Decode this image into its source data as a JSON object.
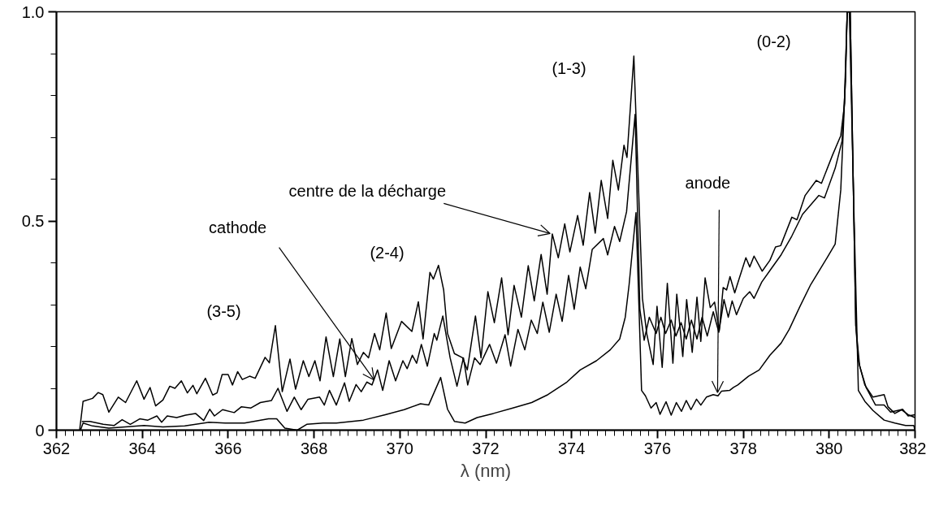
{
  "chart_data": {
    "type": "line",
    "xlabel": "λ (nm)",
    "xlim": [
      362,
      382
    ],
    "xticks": [
      362,
      364,
      366,
      368,
      370,
      372,
      374,
      376,
      378,
      380,
      382
    ],
    "ylim": [
      0,
      1
    ],
    "yticks": [
      0,
      0.5,
      {
        "value": 1,
        "label": "1.0"
      }
    ],
    "grid": false,
    "marker": "none",
    "line_style": "solid",
    "series": [
      {
        "color": "#000000",
        "x": [
          362.54,
          362.62,
          362.84,
          362.97,
          363.08,
          363.22,
          363.44,
          363.61,
          363.87,
          364.04,
          364.18,
          364.31,
          364.48,
          364.64,
          364.76,
          364.91,
          365.05,
          365.18,
          365.27,
          365.47,
          365.64,
          365.74,
          365.86,
          366.0,
          366.1,
          366.22,
          366.33,
          366.5,
          366.63,
          366.86,
          366.96,
          367.1,
          367.26,
          367.44,
          367.57,
          367.75,
          367.88,
          368.02,
          368.14,
          368.28,
          368.45,
          368.6,
          368.73,
          368.88,
          369.01,
          369.15,
          369.27,
          369.41,
          369.53,
          369.68,
          369.8,
          370.04,
          370.28,
          370.43,
          370.54,
          370.7,
          370.78,
          370.9,
          371.02,
          371.11,
          371.27,
          371.46,
          371.57,
          371.76,
          371.89,
          372.05,
          372.2,
          372.37,
          372.52,
          372.66,
          372.83,
          372.99,
          373.13,
          373.29,
          373.43,
          373.55,
          373.69,
          373.84,
          373.96,
          374.14,
          374.27,
          374.42,
          374.55,
          374.69,
          374.84,
          374.96,
          375.09,
          375.22,
          375.29,
          375.45,
          375.65,
          375.75,
          375.9,
          375.99,
          376.11,
          376.23,
          376.36,
          376.45,
          376.59,
          376.68,
          376.81,
          376.92,
          377.01,
          377.11,
          377.23,
          377.33,
          377.44,
          377.53,
          377.61,
          377.69,
          377.8,
          377.9,
          378.06,
          378.15,
          378.25,
          378.44,
          378.62,
          378.75,
          378.87,
          379.13,
          379.25,
          379.44,
          379.7,
          379.82,
          380.08,
          380.27,
          380.36,
          380.42,
          380.49,
          380.62,
          380.68,
          380.83,
          381.02,
          381.28,
          381.37,
          381.53,
          381.71,
          381.84,
          382.0
        ],
        "values": [
          0,
          0.069,
          0.076,
          0.09,
          0.085,
          0.043,
          0.079,
          0.066,
          0.118,
          0.074,
          0.102,
          0.058,
          0.072,
          0.105,
          0.1,
          0.118,
          0.089,
          0.107,
          0.087,
          0.124,
          0.084,
          0.089,
          0.133,
          0.133,
          0.108,
          0.14,
          0.121,
          0.129,
          0.124,
          0.174,
          0.161,
          0.25,
          0.092,
          0.17,
          0.098,
          0.166,
          0.128,
          0.166,
          0.118,
          0.223,
          0.128,
          0.218,
          0.128,
          0.219,
          0.157,
          0.186,
          0.173,
          0.231,
          0.192,
          0.28,
          0.195,
          0.26,
          0.236,
          0.307,
          0.218,
          0.377,
          0.361,
          0.394,
          0.335,
          0.231,
          0.183,
          0.173,
          0.144,
          0.273,
          0.173,
          0.331,
          0.257,
          0.364,
          0.228,
          0.346,
          0.27,
          0.393,
          0.309,
          0.42,
          0.325,
          0.469,
          0.412,
          0.493,
          0.426,
          0.513,
          0.442,
          0.568,
          0.471,
          0.597,
          0.506,
          0.645,
          0.574,
          0.681,
          0.652,
          0.894,
          0.315,
          0.231,
          0.157,
          0.296,
          0.15,
          0.351,
          0.16,
          0.325,
          0.176,
          0.312,
          0.186,
          0.318,
          0.212,
          0.364,
          0.293,
          0.306,
          0.238,
          0.341,
          0.335,
          0.367,
          0.328,
          0.361,
          0.412,
          0.39,
          0.416,
          0.38,
          0.406,
          0.438,
          0.441,
          0.509,
          0.503,
          0.561,
          0.597,
          0.59,
          0.658,
          0.704,
          0.781,
          1.0,
          1.0,
          0.25,
          0.166,
          0.108,
          0.079,
          0.085,
          0.056,
          0.04,
          0.05,
          0.034,
          0.037
        ]
      },
      {
        "color": "#000000",
        "x": [
          362.59,
          362.78,
          363.09,
          363.34,
          363.53,
          363.72,
          363.94,
          364.13,
          364.34,
          364.45,
          364.58,
          364.8,
          365.01,
          365.24,
          365.43,
          365.57,
          365.68,
          365.87,
          366.14,
          366.31,
          366.53,
          366.75,
          367.01,
          367.16,
          367.37,
          367.54,
          367.7,
          367.86,
          368.13,
          368.24,
          368.36,
          368.52,
          368.71,
          368.82,
          368.98,
          369.1,
          369.23,
          369.35,
          369.48,
          369.6,
          369.75,
          369.9,
          370.07,
          370.17,
          370.29,
          370.39,
          370.5,
          370.64,
          370.8,
          370.86,
          371.0,
          371.17,
          371.33,
          371.48,
          371.58,
          371.74,
          371.87,
          372.09,
          372.25,
          372.45,
          372.58,
          372.75,
          372.91,
          373.06,
          373.2,
          373.33,
          373.48,
          373.64,
          373.78,
          373.93,
          374.06,
          374.2,
          374.33,
          374.48,
          374.74,
          374.84,
          375.0,
          375.12,
          375.28,
          375.48,
          375.59,
          375.69,
          375.81,
          375.97,
          376.08,
          376.19,
          376.32,
          376.43,
          376.55,
          376.67,
          376.79,
          376.92,
          377.04,
          377.16,
          377.3,
          377.43,
          377.55,
          377.65,
          377.74,
          377.84,
          378.0,
          378.15,
          378.25,
          378.43,
          378.65,
          378.88,
          379.13,
          379.38,
          379.76,
          379.89,
          380.14,
          380.3,
          380.38,
          380.42,
          380.49,
          380.62,
          380.71,
          380.86,
          381.08,
          381.28,
          381.43,
          381.68,
          381.84,
          382.0
        ],
        "values": [
          0.021,
          0.021,
          0.014,
          0.011,
          0.025,
          0.014,
          0.027,
          0.024,
          0.034,
          0.019,
          0.034,
          0.03,
          0.036,
          0.04,
          0.023,
          0.05,
          0.034,
          0.049,
          0.042,
          0.056,
          0.053,
          0.066,
          0.071,
          0.1,
          0.045,
          0.079,
          0.049,
          0.074,
          0.079,
          0.06,
          0.095,
          0.06,
          0.113,
          0.069,
          0.109,
          0.092,
          0.115,
          0.108,
          0.144,
          0.095,
          0.166,
          0.118,
          0.166,
          0.147,
          0.179,
          0.16,
          0.205,
          0.153,
          0.231,
          0.215,
          0.273,
          0.173,
          0.105,
          0.173,
          0.108,
          0.173,
          0.157,
          0.205,
          0.16,
          0.228,
          0.153,
          0.241,
          0.192,
          0.263,
          0.231,
          0.306,
          0.234,
          0.325,
          0.26,
          0.37,
          0.289,
          0.39,
          0.338,
          0.432,
          0.458,
          0.419,
          0.487,
          0.451,
          0.522,
          0.755,
          0.289,
          0.215,
          0.27,
          0.231,
          0.27,
          0.231,
          0.263,
          0.225,
          0.257,
          0.218,
          0.263,
          0.218,
          0.27,
          0.225,
          0.283,
          0.234,
          0.312,
          0.27,
          0.309,
          0.276,
          0.315,
          0.331,
          0.315,
          0.354,
          0.386,
          0.419,
          0.464,
          0.516,
          0.561,
          0.555,
          0.626,
          0.691,
          0.833,
          1.0,
          1.0,
          0.25,
          0.153,
          0.102,
          0.06,
          0.06,
          0.043,
          0.049,
          0.037,
          0.03
        ]
      },
      {
        "color": "#000000",
        "x": [
          362.56,
          362.62,
          362.84,
          363.22,
          363.6,
          364.04,
          364.48,
          364.99,
          365.55,
          365.93,
          366.38,
          366.94,
          367.13,
          367.32,
          367.61,
          367.83,
          368.21,
          368.52,
          369.15,
          369.66,
          370.1,
          370.48,
          370.67,
          370.95,
          371.11,
          371.27,
          371.52,
          371.8,
          372.18,
          372.63,
          373.07,
          373.45,
          373.89,
          374.2,
          374.58,
          374.9,
          375.12,
          375.25,
          375.34,
          375.5,
          375.63,
          375.72,
          375.85,
          375.97,
          376.06,
          376.2,
          376.32,
          376.44,
          376.56,
          376.67,
          376.78,
          376.91,
          377.01,
          377.14,
          377.3,
          377.41,
          377.49,
          377.68,
          377.77,
          377.87,
          378.12,
          378.37,
          378.62,
          378.88,
          379.07,
          379.32,
          379.57,
          379.76,
          379.95,
          380.14,
          380.27,
          380.35,
          380.42,
          380.47,
          380.58,
          380.68,
          380.83,
          381.02,
          381.28,
          381.53,
          381.78,
          381.97,
          382.0
        ],
        "values": [
          0,
          0.017,
          0.01,
          0.005,
          0.008,
          0.011,
          0.008,
          0.01,
          0.019,
          0.017,
          0.017,
          0.027,
          0.027,
          0.005,
          0,
          0.014,
          0.017,
          0.017,
          0.024,
          0.037,
          0.049,
          0.063,
          0.06,
          0.126,
          0.05,
          0.021,
          0.017,
          0.03,
          0.04,
          0.053,
          0.066,
          0.085,
          0.115,
          0.144,
          0.166,
          0.192,
          0.218,
          0.27,
          0.348,
          0.52,
          0.095,
          0.082,
          0.053,
          0.066,
          0.038,
          0.068,
          0.036,
          0.066,
          0.045,
          0.071,
          0.049,
          0.074,
          0.06,
          0.079,
          0.085,
          0.082,
          0.093,
          0.095,
          0.102,
          0.108,
          0.129,
          0.144,
          0.179,
          0.208,
          0.241,
          0.296,
          0.348,
          0.38,
          0.412,
          0.445,
          0.574,
          0.768,
          1.0,
          1.0,
          0.509,
          0.095,
          0.069,
          0.047,
          0.024,
          0.017,
          0.011,
          0.011,
          0
        ]
      }
    ],
    "annotations": [
      "(3-5)",
      "(2-4)",
      "(1-3)",
      "(0-2)",
      {
        "text": "centre de la décharge",
        "x": 373.5,
        "y": 0.47
      },
      {
        "text": "cathode",
        "x": 369.4,
        "y": 0.12
      },
      {
        "text": "anode",
        "x": 377.4,
        "y": 0.09
      }
    ]
  }
}
